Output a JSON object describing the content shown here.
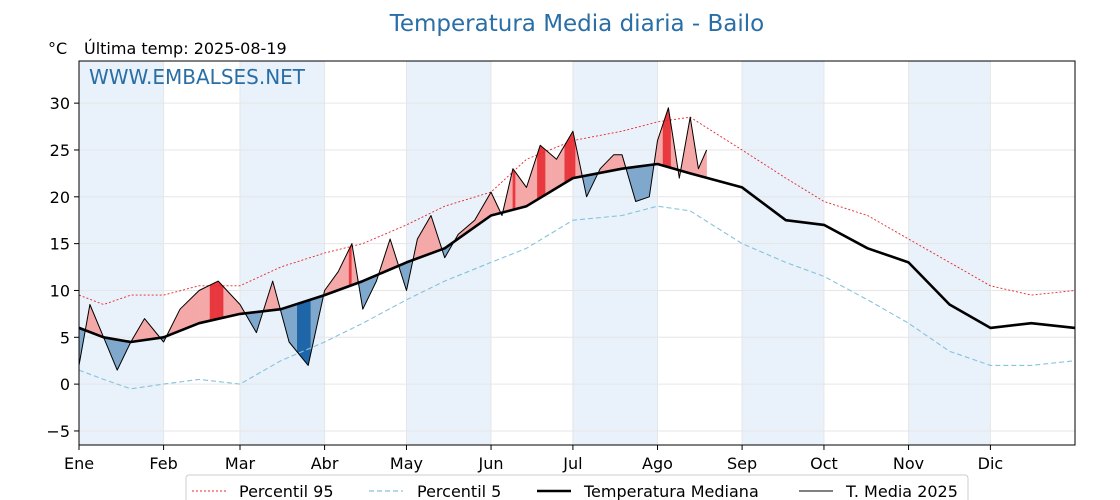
{
  "chart_data": {
    "type": "line",
    "title": "Temperatura Media diaria - Bailo",
    "unit": "°C",
    "last_temp": "Última temp: 2025-08-19",
    "watermark": "WWW.EMBALSES.NET",
    "ylim": [
      -6.5,
      34.5
    ],
    "yticks": [
      -5,
      0,
      5,
      10,
      15,
      20,
      25,
      30
    ],
    "x_domain_days": [
      1,
      366
    ],
    "months": [
      {
        "label": "Ene",
        "day": 1
      },
      {
        "label": "Feb",
        "day": 32
      },
      {
        "label": "Mar",
        "day": 60
      },
      {
        "label": "Abr",
        "day": 91
      },
      {
        "label": "May",
        "day": 121
      },
      {
        "label": "Jun",
        "day": 152
      },
      {
        "label": "Jul",
        "day": 182
      },
      {
        "label": "Ago",
        "day": 213
      },
      {
        "label": "Sep",
        "day": 244
      },
      {
        "label": "Oct",
        "day": 274
      },
      {
        "label": "Nov",
        "day": 305
      },
      {
        "label": "Dic",
        "day": 335
      }
    ],
    "grid": true,
    "legend_position": "bottom-center",
    "colors": {
      "p95": "#e8262a",
      "p5": "#86c3dc",
      "median": "#000000",
      "current": "#000000",
      "warm_fill": "#f4a9a8",
      "warm_fill_strong": "#e8393f",
      "cold_fill": "#7fa8cc",
      "cold_fill_strong": "#1f66a8",
      "band": "#e9f1fa"
    },
    "series": [
      {
        "name": "Percentil 95",
        "key": "p95",
        "x": [
          1,
          10,
          20,
          32,
          45,
          60,
          75,
          91,
          105,
          121,
          135,
          152,
          165,
          182,
          200,
          213,
          225,
          244,
          260,
          274,
          290,
          305,
          320,
          335,
          350,
          366
        ],
        "y": [
          9.5,
          8.5,
          9.5,
          9.5,
          10.5,
          10.5,
          12.5,
          14.0,
          15.0,
          17.0,
          19.0,
          20.5,
          24.0,
          26.0,
          27.0,
          28.0,
          28.5,
          25.0,
          22.0,
          19.5,
          18.0,
          15.5,
          13.0,
          10.5,
          9.5,
          10.0
        ]
      },
      {
        "name": "Percentil 5",
        "key": "p5",
        "x": [
          1,
          10,
          20,
          32,
          45,
          60,
          75,
          91,
          105,
          121,
          135,
          152,
          165,
          182,
          200,
          213,
          225,
          244,
          260,
          274,
          290,
          305,
          320,
          335,
          350,
          366
        ],
        "y": [
          1.5,
          0.5,
          -0.5,
          0.0,
          0.5,
          0.0,
          2.5,
          4.5,
          6.5,
          9.0,
          11.0,
          13.0,
          14.5,
          17.5,
          18.0,
          19.0,
          18.5,
          15.0,
          13.0,
          11.5,
          9.0,
          6.5,
          3.5,
          2.0,
          2.0,
          2.5
        ]
      },
      {
        "name": "Temperatura Mediana",
        "key": "median",
        "x": [
          1,
          10,
          20,
          32,
          45,
          60,
          75,
          91,
          105,
          121,
          135,
          152,
          165,
          182,
          200,
          213,
          225,
          244,
          260,
          274,
          290,
          305,
          320,
          335,
          350,
          366
        ],
        "y": [
          6.0,
          5.0,
          4.5,
          5.0,
          6.5,
          7.5,
          8.0,
          9.5,
          11.0,
          13.0,
          14.5,
          18.0,
          19.0,
          22.0,
          23.0,
          23.5,
          22.5,
          21.0,
          17.5,
          17.0,
          14.5,
          13.0,
          8.5,
          6.0,
          6.5,
          6.0
        ]
      },
      {
        "name": "T. Media 2025",
        "key": "current",
        "x": [
          1,
          5,
          10,
          15,
          20,
          25,
          32,
          38,
          45,
          52,
          60,
          66,
          72,
          78,
          85,
          91,
          96,
          101,
          105,
          110,
          115,
          121,
          125,
          130,
          135,
          140,
          146,
          152,
          156,
          160,
          165,
          170,
          176,
          182,
          187,
          192,
          197,
          200,
          205,
          210,
          213,
          217,
          221,
          225,
          228,
          231
        ],
        "y": [
          2.0,
          8.5,
          5.0,
          1.5,
          4.5,
          7.0,
          4.5,
          8.0,
          10.0,
          11.0,
          8.5,
          5.5,
          11.0,
          4.5,
          2.0,
          10.0,
          12.0,
          15.0,
          8.0,
          11.0,
          15.5,
          10.0,
          15.5,
          18.0,
          13.5,
          16.0,
          17.5,
          20.5,
          18.0,
          23.0,
          21.0,
          25.5,
          24.0,
          27.0,
          20.0,
          23.0,
          24.5,
          24.5,
          19.5,
          20.0,
          26.0,
          29.5,
          22.0,
          28.5,
          23.0,
          25.0
        ]
      }
    ]
  }
}
